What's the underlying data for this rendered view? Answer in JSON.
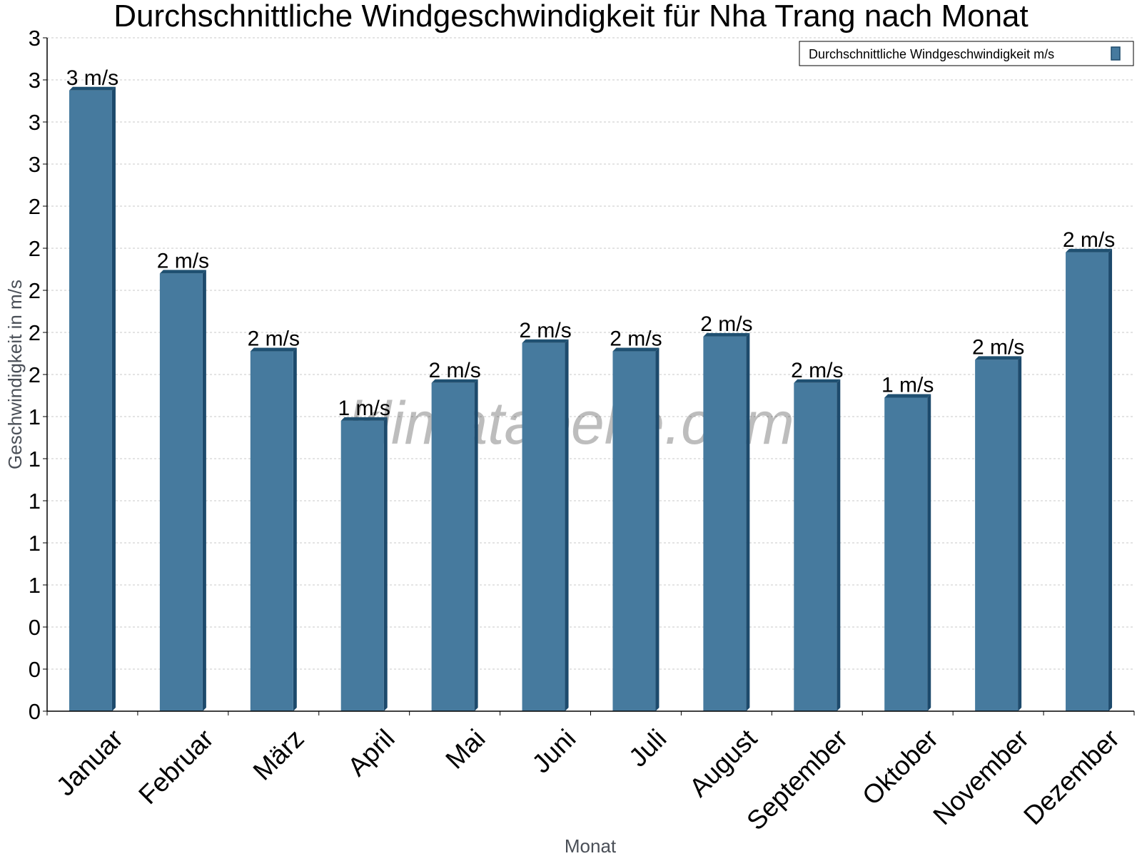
{
  "chart_data": {
    "type": "bar",
    "title": "Durchschnittliche Windgeschwindigkeit für Nha Trang nach Monat",
    "xlabel": "Monat",
    "ylabel": "Geschwindigkeit in m/s",
    "categories": [
      "Januar",
      "Februar",
      "März",
      "April",
      "Mai",
      "Juni",
      "Juli",
      "August",
      "September",
      "Oktober",
      "November",
      "Dezember"
    ],
    "series": [
      {
        "name": "Durchschnittliche Windgeschwindigkeit m/s",
        "values": [
          2.95,
          2.08,
          1.71,
          1.38,
          1.56,
          1.75,
          1.71,
          1.78,
          1.56,
          1.49,
          1.67,
          2.18
        ],
        "labels": [
          "3 m/s",
          "2 m/s",
          "2 m/s",
          "1 m/s",
          "2 m/s",
          "2 m/s",
          "2 m/s",
          "2 m/s",
          "2 m/s",
          "1 m/s",
          "2 m/s",
          "2 m/s"
        ]
      }
    ],
    "ylim": [
      0,
      3.2
    ],
    "yticks": [
      0,
      0.2,
      0.4,
      0.6,
      0.8,
      1.0,
      1.2,
      1.4,
      1.6,
      1.8,
      2.0,
      2.2,
      2.4,
      2.6,
      2.8,
      3.0,
      3.2
    ],
    "ytick_labels": [
      "0",
      "0",
      "0",
      "1",
      "1",
      "1",
      "1",
      "1",
      "2",
      "2",
      "2",
      "2",
      "2",
      "3",
      "3",
      "3",
      "3"
    ],
    "grid": true,
    "legend_position": "top-right",
    "watermark": "klimatabelle.com",
    "colors": {
      "bar_front": "#467a9e",
      "bar_side": "#1d4a6c",
      "bar_top": "#1f5071",
      "grid": "#c8c8c8"
    }
  }
}
